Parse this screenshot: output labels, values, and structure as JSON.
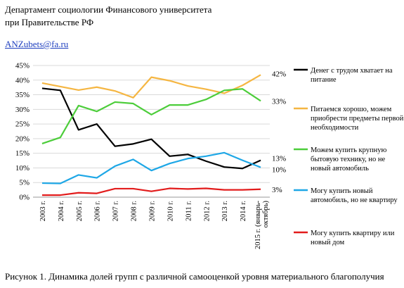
{
  "header": {
    "line1": "Департамент социологии Финансового университета",
    "line2": "при Правительстве РФ",
    "email": "ANZubets@fa.ru"
  },
  "caption": "Рисунок 1. Динамика долей групп с различной самооценкой уровня материального благополучия",
  "chart_data": {
    "type": "line",
    "categories": [
      "2003 г.",
      "2004 г.",
      "2005 г.",
      "2006 г.",
      "2007 г.",
      "2008 г.",
      "2009 г.",
      "2010 г.",
      "2011 г.",
      "2012 г.",
      "2013 г.",
      "2014 г.",
      "2015 г. (январь-октябрь)"
    ],
    "ylim": [
      0,
      45
    ],
    "yticks": [
      "0%",
      "5%",
      "10%",
      "15%",
      "20%",
      "25%",
      "30%",
      "35%",
      "40%",
      "45%"
    ],
    "grid": true,
    "legend_position": "right",
    "series": [
      {
        "name": "Денег с трудом хватает на питание",
        "color": "#000000",
        "values": [
          37.2,
          36.5,
          23.0,
          25.0,
          17.4,
          18.2,
          19.8,
          14.0,
          14.6,
          12.3,
          10.3,
          9.8,
          12.6
        ],
        "end_label": "13%"
      },
      {
        "name": "Питаемся хорошо, можем приобрести предметы первой необходимости",
        "color": "#f5b642",
        "values": [
          39.0,
          37.8,
          36.6,
          37.6,
          36.3,
          34.0,
          41.0,
          39.8,
          38.0,
          36.9,
          35.5,
          38.2,
          41.8
        ],
        "end_label": "42%"
      },
      {
        "name": "Можем купить крупную бытовую технику, но не новый автомобиль",
        "color": "#4ccd3a",
        "values": [
          18.3,
          20.4,
          31.3,
          29.3,
          32.5,
          32.0,
          28.2,
          31.5,
          31.5,
          33.4,
          36.5,
          37.0,
          32.9
        ],
        "end_label": "33%"
      },
      {
        "name": "Могу купить новый автомобиль, но не квартиру",
        "color": "#1ea7e6",
        "values": [
          4.8,
          4.7,
          7.6,
          6.6,
          10.6,
          12.9,
          9.1,
          11.5,
          13.2,
          14.0,
          15.2,
          12.6,
          10.2
        ],
        "end_label": "10%"
      },
      {
        "name": "Могу купить квартиру или новый дом",
        "color": "#e21c1c",
        "values": [
          0.7,
          0.7,
          1.5,
          1.3,
          2.9,
          2.9,
          2.0,
          3.0,
          2.8,
          3.0,
          2.5,
          2.5,
          2.7
        ],
        "end_label": "3%"
      }
    ]
  }
}
